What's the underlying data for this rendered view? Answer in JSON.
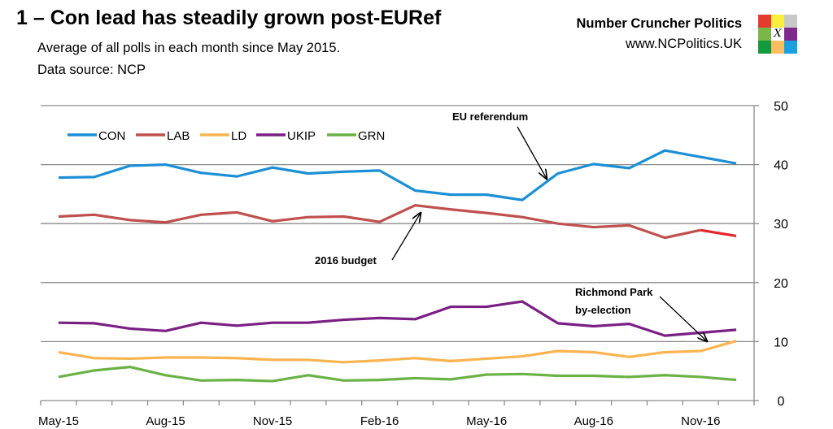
{
  "header": {
    "title": "1 – Con lead has steadily grown post-EURef",
    "subtitle": "Average of all polls in each month since May 2015.",
    "source": "Data source: NCP"
  },
  "brand": {
    "name": "Number Cruncher Politics",
    "url": "www.NCPolitics.UK",
    "logo_mark": "X",
    "logo_colors": [
      "#e53a2e",
      "#fbee3c",
      "#c8c8c8",
      "#7ab648",
      "#ffffff",
      "#7d2a8e",
      "#139a3e",
      "#fcbd5f",
      "#1aa0e0"
    ]
  },
  "chart_data": {
    "type": "line",
    "title": "1 – Con lead has steadily grown post-EURef",
    "ylim": [
      0,
      50
    ],
    "yticks": [
      0,
      10,
      20,
      30,
      40,
      50
    ],
    "y_axis_side": "right",
    "grid": true,
    "legend": "top-left",
    "categories": [
      "May-15",
      "Jun-15",
      "Jul-15",
      "Aug-15",
      "Sep-15",
      "Oct-15",
      "Nov-15",
      "Dec-15",
      "Jan-16",
      "Feb-16",
      "Mar-16",
      "Apr-16",
      "May-16",
      "Jun-16",
      "Jul-16",
      "Aug-16",
      "Sep-16",
      "Oct-16",
      "Nov-16",
      "Dec-16"
    ],
    "tick_labels": [
      "May-15",
      "Aug-15",
      "Nov-15",
      "Feb-16",
      "May-16",
      "Aug-16",
      "Nov-16"
    ],
    "series": [
      {
        "name": "CON",
        "color": "#1b8fd6",
        "values": [
          37.8,
          37.9,
          39.8,
          40.0,
          38.6,
          38.0,
          39.5,
          38.5,
          38.8,
          39.0,
          35.6,
          34.9,
          34.9,
          34.0,
          38.5,
          40.1,
          39.4,
          42.4,
          41.3,
          40.2
        ]
      },
      {
        "name": "LAB",
        "color": "#c0504d",
        "last_segment_color": "#e3262a",
        "values": [
          31.2,
          31.5,
          30.6,
          30.2,
          31.5,
          31.9,
          30.4,
          31.1,
          31.2,
          30.3,
          33.1,
          32.4,
          31.8,
          31.1,
          30.0,
          29.4,
          29.7,
          27.6,
          28.9,
          27.9
        ]
      },
      {
        "name": "LD",
        "color": "#fbb450",
        "values": [
          8.2,
          7.2,
          7.1,
          7.3,
          7.3,
          7.2,
          6.9,
          6.9,
          6.5,
          6.8,
          7.2,
          6.7,
          7.1,
          7.5,
          8.4,
          8.2,
          7.4,
          8.2,
          8.4,
          10.1
        ]
      },
      {
        "name": "UKIP",
        "color": "#7a1f84",
        "values": [
          13.2,
          13.1,
          12.2,
          11.8,
          13.2,
          12.7,
          13.2,
          13.2,
          13.7,
          14.0,
          13.8,
          15.9,
          15.9,
          16.8,
          13.1,
          12.6,
          13.0,
          11.0,
          11.5,
          12.0
        ]
      },
      {
        "name": "GRN",
        "color": "#6ab245",
        "values": [
          4.0,
          5.1,
          5.7,
          4.3,
          3.4,
          3.5,
          3.3,
          4.3,
          3.4,
          3.5,
          3.8,
          3.6,
          4.4,
          4.5,
          4.2,
          4.2,
          4.0,
          4.3,
          4.0,
          3.5
        ]
      }
    ],
    "annotations": [
      {
        "text": "EU referendum",
        "category": "Jun-16"
      },
      {
        "text": "2016 budget",
        "category": "Mar-16"
      },
      {
        "text": "Richmond Park",
        "text2": "by-election",
        "category": "Dec-16"
      }
    ]
  }
}
